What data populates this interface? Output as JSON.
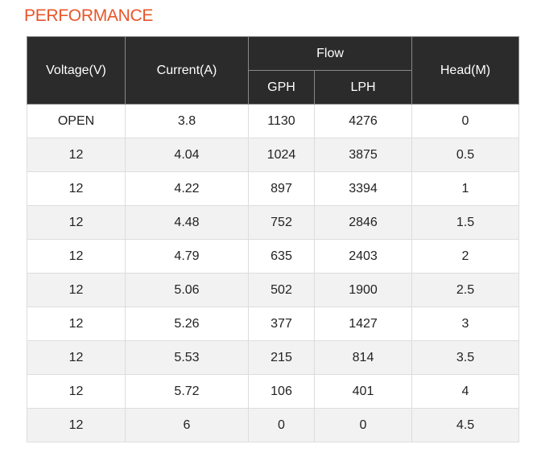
{
  "title": "PERFORMANCE",
  "table": {
    "header": {
      "voltage": "Voltage(V)",
      "current": "Current(A)",
      "flow": "Flow",
      "gph": "GPH",
      "lph": "LPH",
      "head": "Head(M)"
    },
    "rows": [
      [
        "OPEN",
        "3.8",
        "1130",
        "4276",
        "0"
      ],
      [
        "12",
        "4.04",
        "1024",
        "3875",
        "0.5"
      ],
      [
        "12",
        "4.22",
        "897",
        "3394",
        "1"
      ],
      [
        "12",
        "4.48",
        "752",
        "2846",
        "1.5"
      ],
      [
        "12",
        "4.79",
        "635",
        "2403",
        "2"
      ],
      [
        "12",
        "5.06",
        "502",
        "1900",
        "2.5"
      ],
      [
        "12",
        "5.26",
        "377",
        "1427",
        "3"
      ],
      [
        "12",
        "5.53",
        "215",
        "814",
        "3.5"
      ],
      [
        "12",
        "5.72",
        "106",
        "401",
        "4"
      ],
      [
        "12",
        "6",
        "0",
        "0",
        "4.5"
      ]
    ]
  }
}
